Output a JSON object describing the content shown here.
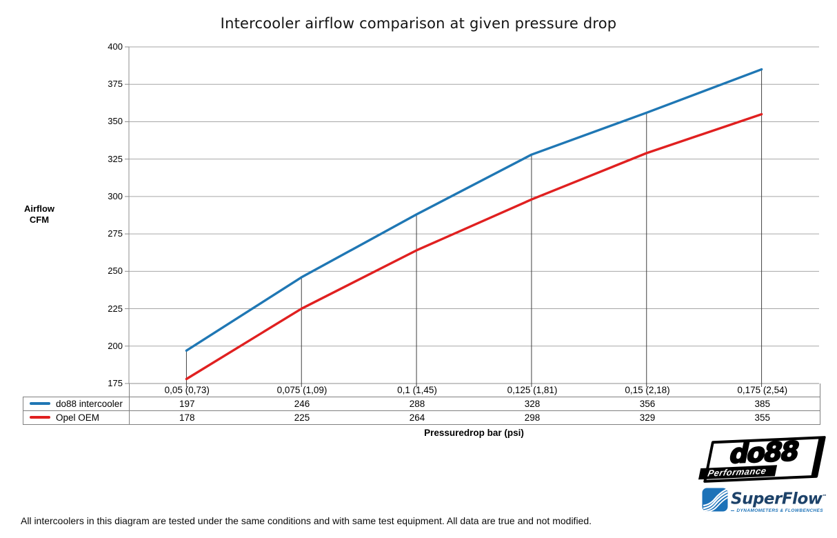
{
  "title": "Intercooler airflow comparison at given pressure drop",
  "footer": "All intercoolers in this diagram are tested under the same conditions and with same test equipment. All data are true and not modified.",
  "chart_data": {
    "type": "line",
    "title": "Intercooler airflow comparison at given pressure drop",
    "ylabel_lines": [
      "Airflow",
      "CFM"
    ],
    "xlabel": "Pressuredrop bar (psi)",
    "categories": [
      "0,05 (0,73)",
      "0,075 (1,09)",
      "0,1 (1,45)",
      "0,125 (1,81)",
      "0,15 (2,18)",
      "0,175 (2,54)"
    ],
    "series": [
      {
        "name": "do88 intercooler",
        "color": "#1f77b4",
        "values": [
          197,
          246,
          288,
          328,
          356,
          385
        ]
      },
      {
        "name": "Opel OEM",
        "color": "#e02020",
        "values": [
          178,
          225,
          264,
          298,
          329,
          355
        ]
      }
    ],
    "ylim": [
      175,
      400
    ],
    "ytick_step": 25,
    "grid": true,
    "drop_lines": true,
    "legend_position": "table-left",
    "colors": {
      "gridline": "#a6a6a6",
      "axis": "#8c8c8c",
      "drop_line": "#404040",
      "table_border": "#7f7f7f"
    }
  },
  "logos": {
    "do88": {
      "text": "do88",
      "subtext": "Performance"
    },
    "superflow": {
      "text": "SuperFlow",
      "tm": "™",
      "tagline": "DYNAMOMETERS & FLOWBENCHES"
    }
  }
}
